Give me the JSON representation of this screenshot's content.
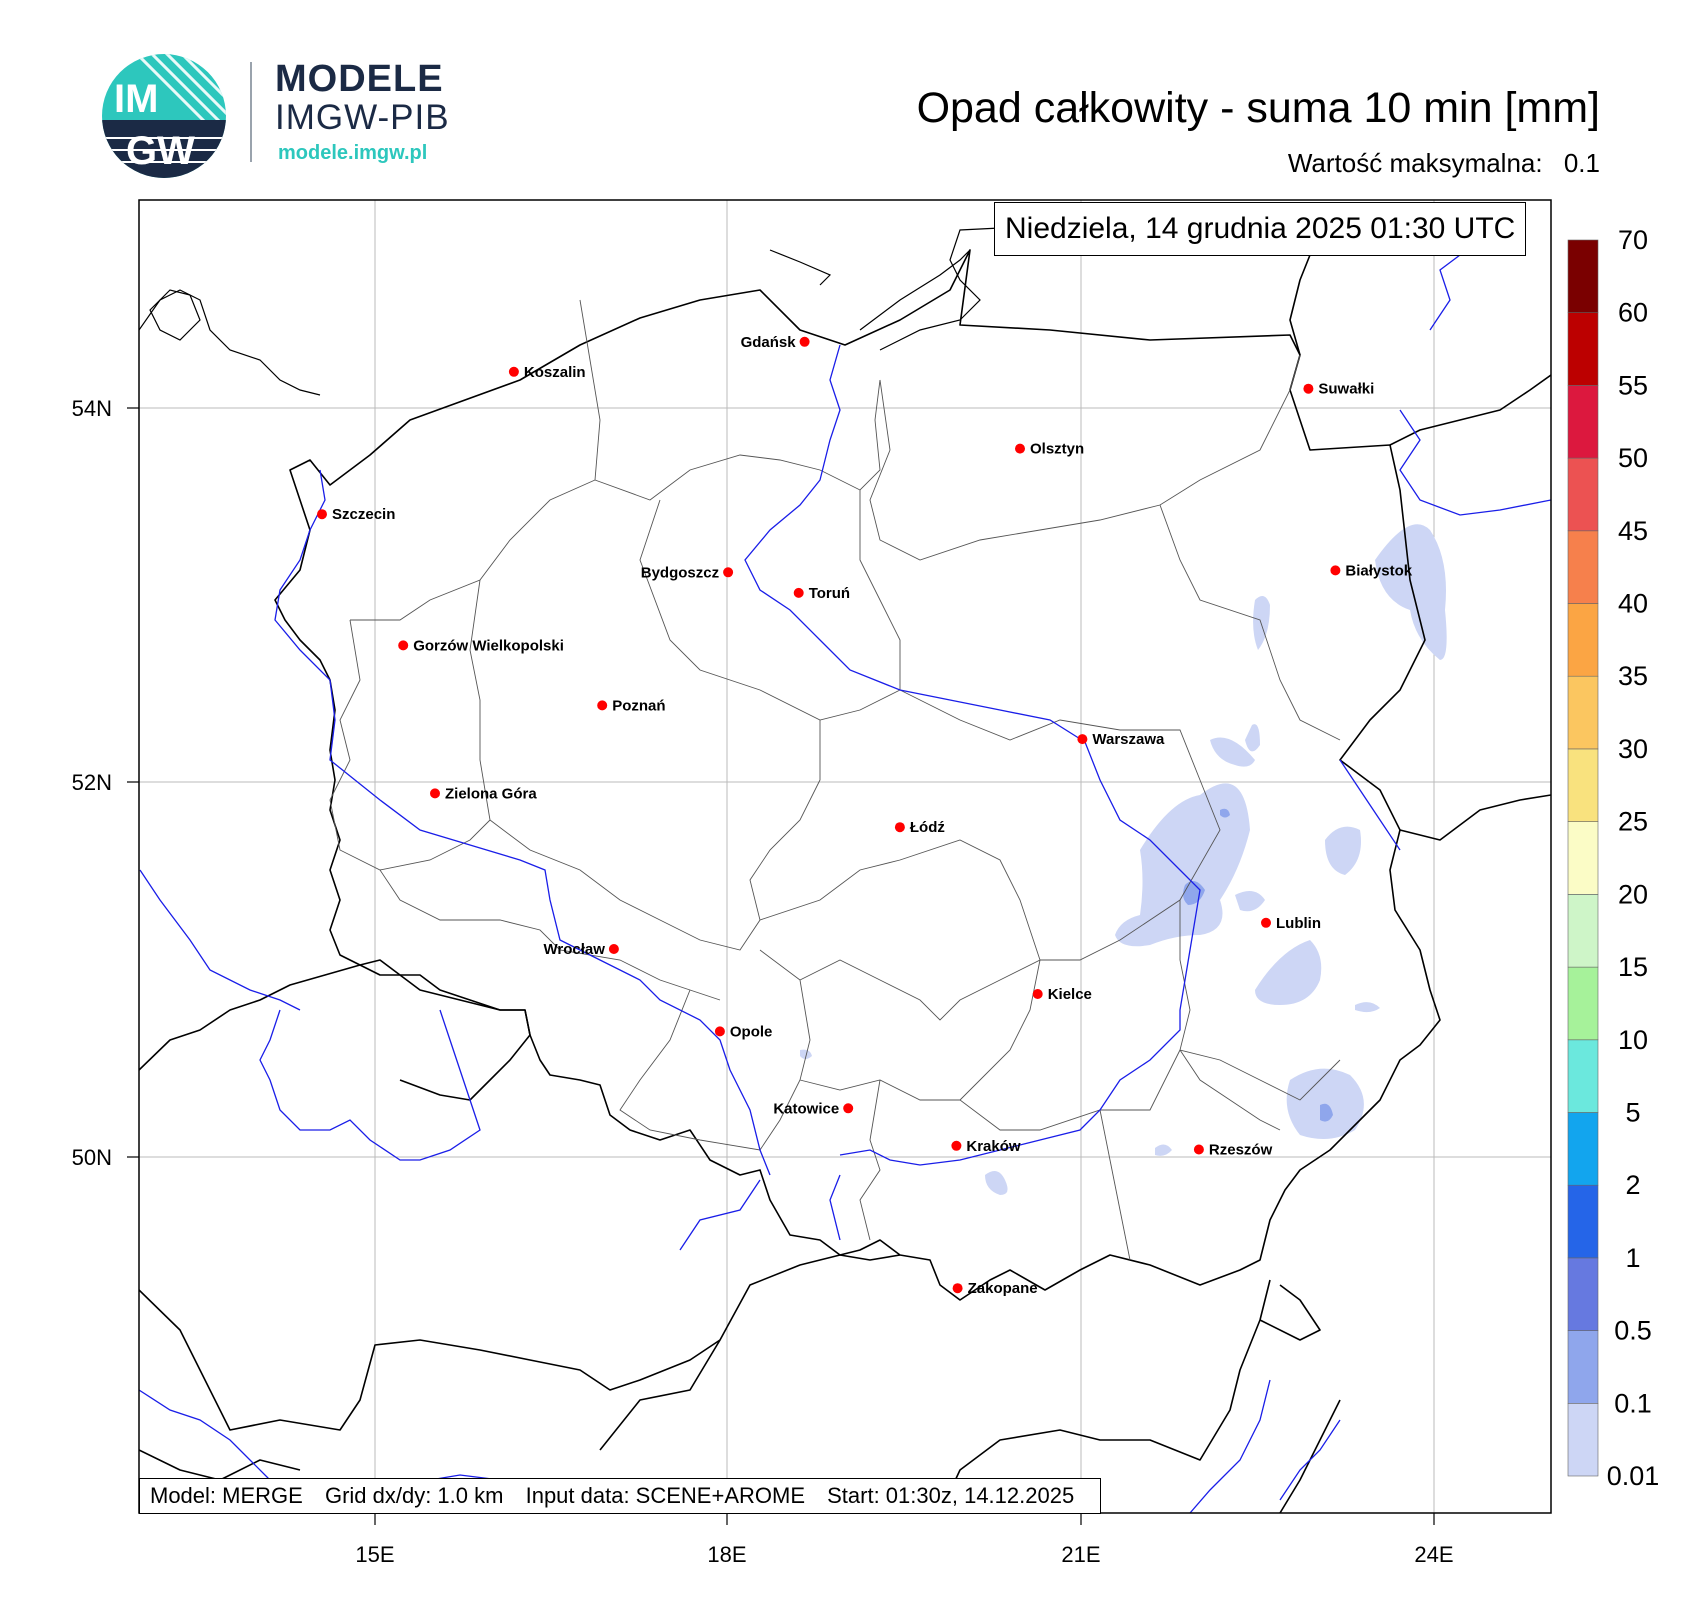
{
  "brand": {
    "logo_text_top": "IM",
    "logo_text_bottom": "GW",
    "name": "MODELE",
    "sub": "IMGW-PIB",
    "url": "modele.imgw.pl"
  },
  "header": {
    "title": "Opad całkowity - suma 10 min [mm]",
    "max_label": "Wartość maksymalna:",
    "max_value": "0.1"
  },
  "datetime": "Niedziela, 14 grudnia 2025 01:30 UTC",
  "footer": {
    "model": "Model: MERGE",
    "grid": "Grid dx/dy: 1.0 km",
    "input": "Input data: SCENE+AROME",
    "start": "Start: 01:30z, 14.12.2025"
  },
  "axes": {
    "lat_labels": [
      "54N",
      "52N",
      "50N"
    ],
    "lon_labels": [
      "15E",
      "18E",
      "21E",
      "24E"
    ]
  },
  "cities": [
    {
      "name": "Gdańsk",
      "lon": 18.65,
      "lat": 54.35,
      "label_side": "left"
    },
    {
      "name": "Koszalin",
      "lon": 16.18,
      "lat": 54.19,
      "label_side": "right"
    },
    {
      "name": "Suwałki",
      "lon": 22.93,
      "lat": 54.1,
      "label_side": "right"
    },
    {
      "name": "Olsztyn",
      "lon": 20.48,
      "lat": 53.78,
      "label_side": "right"
    },
    {
      "name": "Szczecin",
      "lon": 14.55,
      "lat": 53.43,
      "label_side": "right"
    },
    {
      "name": "Białystok",
      "lon": 23.16,
      "lat": 53.13,
      "label_side": "right"
    },
    {
      "name": "Bydgoszcz",
      "lon": 18.0,
      "lat": 53.12,
      "label_side": "left"
    },
    {
      "name": "Toruń",
      "lon": 18.6,
      "lat": 53.01,
      "label_side": "right"
    },
    {
      "name": "Gorzów Wielkopolski",
      "lon": 15.24,
      "lat": 52.73,
      "label_side": "right"
    },
    {
      "name": "Poznań",
      "lon": 16.93,
      "lat": 52.41,
      "label_side": "right"
    },
    {
      "name": "Warszawa",
      "lon": 21.01,
      "lat": 52.23,
      "label_side": "right"
    },
    {
      "name": "Zielona Góra",
      "lon": 15.51,
      "lat": 51.94,
      "label_side": "right"
    },
    {
      "name": "Łódź",
      "lon": 19.46,
      "lat": 51.76,
      "label_side": "right"
    },
    {
      "name": "Lublin",
      "lon": 22.57,
      "lat": 51.25,
      "label_side": "right"
    },
    {
      "name": "Wrocław",
      "lon": 17.03,
      "lat": 51.11,
      "label_side": "left"
    },
    {
      "name": "Kielce",
      "lon": 20.63,
      "lat": 50.87,
      "label_side": "right"
    },
    {
      "name": "Opole",
      "lon": 17.93,
      "lat": 50.67,
      "label_side": "right"
    },
    {
      "name": "Katowice",
      "lon": 19.02,
      "lat": 50.26,
      "label_side": "left"
    },
    {
      "name": "Rzeszów",
      "lon": 22.0,
      "lat": 50.04,
      "label_side": "right"
    },
    {
      "name": "Kraków",
      "lon": 19.94,
      "lat": 50.06,
      "label_side": "right"
    },
    {
      "name": "Zakopane",
      "lon": 19.95,
      "lat": 49.3,
      "label_side": "right"
    }
  ],
  "colorbar": {
    "labels": [
      "0.01",
      "0.1",
      "0.5",
      "1",
      "2",
      "5",
      "10",
      "15",
      "20",
      "25",
      "30",
      "35",
      "40",
      "45",
      "50",
      "55",
      "60",
      "70"
    ],
    "colors": [
      "#cdd6f5",
      "#8fa6ec",
      "#6679e0",
      "#2565e8",
      "#12a5ee",
      "#6be8dd",
      "#a6f29a",
      "#cef5c8",
      "#fbfcc6",
      "#f9e27e",
      "#fbc660",
      "#fba544",
      "#f6804c",
      "#ec5252",
      "#dc183e",
      "#bc0000",
      "#7a0000"
    ]
  },
  "colors": {
    "border": "#000000",
    "admin": "#555555",
    "river": "#1a1ee8",
    "city": "#ff0000",
    "grid": "#bbbbbb",
    "logo_teal": "#2dc7bd",
    "logo_navy": "#1b2a45"
  }
}
